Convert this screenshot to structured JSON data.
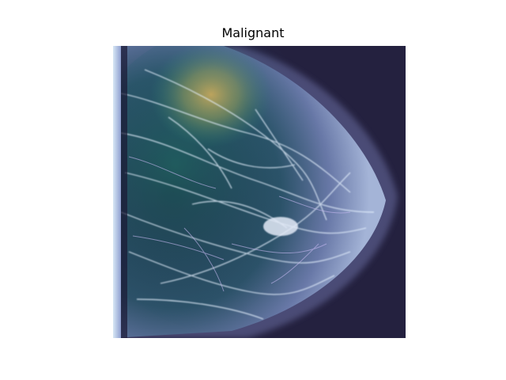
{
  "title": "Malignant",
  "colors": {
    "background": "#ffffff",
    "image_dark": "#24213f",
    "tissue_light": "#c9d4ef",
    "overlay_warm": "#c9a85a",
    "overlay_cool": "#3f8f7f"
  }
}
